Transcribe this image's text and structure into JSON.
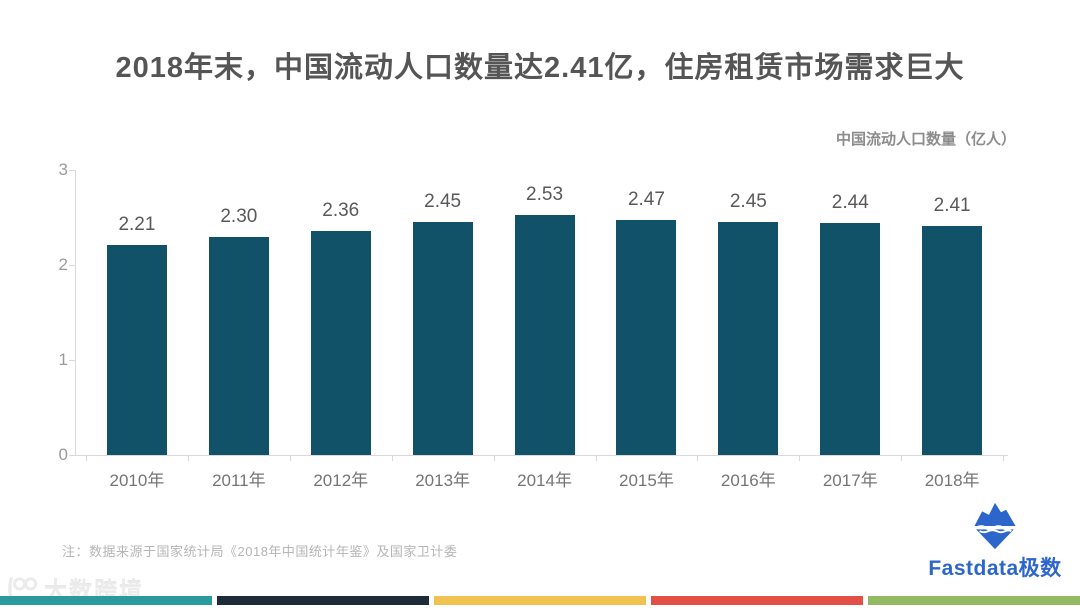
{
  "title": "2018年末，中国流动人口数量达2.41亿，住房租赁市场需求巨大",
  "note": "注：数据来源于国家统计局《2018年中国统计年鉴》及国家卫计委",
  "watermark": "大数跨境",
  "brand": {
    "name": "Fastdata极数",
    "icon": "iceberg-icon",
    "color": "#2d66cb"
  },
  "colors": {
    "bar": "#115269",
    "axis": "#d9d9d9",
    "title_text": "#555555",
    "value_label_text": "#595959",
    "tick_text": "#9b9b9b",
    "note_text": "#b5b5b5"
  },
  "footer_stripes": [
    "#2a9b9d",
    "#1e2c3a",
    "#f0c24f",
    "#e25045",
    "#94b963"
  ],
  "chart_data": {
    "type": "bar",
    "title": "2018年末，中国流动人口数量达2.41亿，住房租赁市场需求巨大",
    "legend": "中国流动人口数量（亿人）",
    "legend_position": "top-right",
    "categories": [
      "2010年",
      "2011年",
      "2012年",
      "2013年",
      "2014年",
      "2015年",
      "2016年",
      "2017年",
      "2018年"
    ],
    "values": [
      2.21,
      2.3,
      2.36,
      2.45,
      2.53,
      2.47,
      2.45,
      2.44,
      2.41
    ],
    "value_labels": [
      "2.21",
      "2.30",
      "2.36",
      "2.45",
      "2.53",
      "2.47",
      "2.45",
      "2.44",
      "2.41"
    ],
    "xlabel": "",
    "ylabel": "中国流动人口数量（亿人）",
    "ylim": [
      0,
      3
    ],
    "yticks": [
      0,
      1,
      2,
      3
    ],
    "grid": false,
    "bar_color": "#115269"
  }
}
